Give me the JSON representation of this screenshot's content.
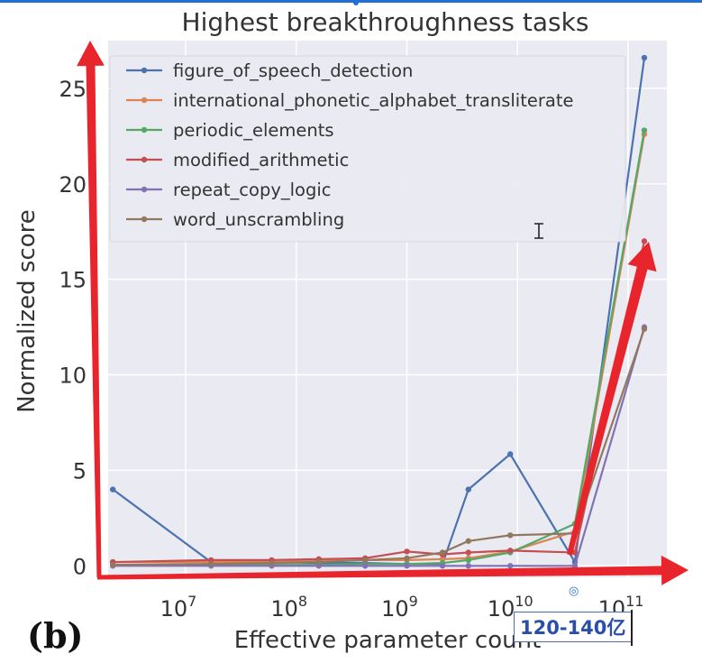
{
  "chart_data": {
    "type": "line",
    "title": "Highest breakthroughness tasks",
    "xlabel": "Effective parameter count",
    "ylabel": "Normalized score",
    "x_scale": "log",
    "x_ticks": [
      {
        "value": 10000000,
        "base": "10",
        "exp": "7"
      },
      {
        "value": 100000000,
        "base": "10",
        "exp": "8"
      },
      {
        "value": 1000000000,
        "base": "10",
        "exp": "9"
      },
      {
        "value": 10000000000,
        "base": "10",
        "exp": "10"
      },
      {
        "value": 100000000000,
        "base": "10",
        "exp": "11"
      }
    ],
    "y_ticks": [
      "0",
      "5",
      "10",
      "15",
      "20",
      "25"
    ],
    "ylim": [
      -0.6,
      27.5
    ],
    "grid": true,
    "legend_position": "upper-left",
    "series": [
      {
        "name": "figure_of_speech_detection",
        "color": "#4c72b0",
        "x": [
          2200000.0,
          17000000.0,
          60000000.0,
          160000000.0,
          420000000.0,
          1000000000.0,
          2100000000.0,
          3600000000.0,
          8600000000.0,
          33000000000.0,
          140000000000.0
        ],
        "y": [
          4.0,
          0.2,
          0.2,
          0.15,
          0.15,
          0.1,
          0.1,
          4.0,
          5.85,
          0.2,
          26.6
        ]
      },
      {
        "name": "international_phonetic_alphabet_transliterate",
        "color": "#dd8452",
        "x": [
          2200000.0,
          17000000.0,
          60000000.0,
          160000000.0,
          420000000.0,
          1000000000.0,
          2100000000.0,
          3600000000.0,
          8600000000.0,
          33000000000.0,
          140000000000.0
        ],
        "y": [
          0.2,
          0.2,
          0.2,
          0.25,
          0.3,
          0.3,
          0.35,
          0.4,
          0.75,
          1.8,
          22.6
        ]
      },
      {
        "name": "periodic_elements",
        "color": "#55a868",
        "x": [
          2200000.0,
          17000000.0,
          60000000.0,
          160000000.0,
          420000000.0,
          1000000000.0,
          2100000000.0,
          3600000000.0,
          8600000000.0,
          33000000000.0,
          140000000000.0
        ],
        "y": [
          0.05,
          0.05,
          0.05,
          0.05,
          0.1,
          0.1,
          0.15,
          0.3,
          0.7,
          2.2,
          22.8
        ]
      },
      {
        "name": "modified_arithmetic",
        "color": "#c44e52",
        "x": [
          2200000.0,
          17000000.0,
          60000000.0,
          160000000.0,
          420000000.0,
          1000000000.0,
          2100000000.0,
          3600000000.0,
          8600000000.0,
          33000000000.0,
          140000000000.0
        ],
        "y": [
          0.2,
          0.3,
          0.3,
          0.35,
          0.4,
          0.75,
          0.6,
          0.7,
          0.8,
          0.7,
          17.0
        ]
      },
      {
        "name": "repeat_copy_logic",
        "color": "#8172b3",
        "x": [
          2200000.0,
          17000000.0,
          60000000.0,
          160000000.0,
          420000000.0,
          1000000000.0,
          2100000000.0,
          3600000000.0,
          8600000000.0,
          33000000000.0,
          140000000000.0
        ],
        "y": [
          0.0,
          0.0,
          0.0,
          0.0,
          0.0,
          0.0,
          0.0,
          0.0,
          0.0,
          0.0,
          12.5
        ]
      },
      {
        "name": "word_unscrambling",
        "color": "#937860",
        "x": [
          2200000.0,
          17000000.0,
          60000000.0,
          160000000.0,
          420000000.0,
          1000000000.0,
          2100000000.0,
          3600000000.0,
          8600000000.0,
          33000000000.0,
          140000000000.0
        ],
        "y": [
          0.05,
          0.1,
          0.15,
          0.2,
          0.3,
          0.4,
          0.7,
          1.3,
          1.6,
          1.7,
          12.4
        ]
      }
    ]
  },
  "figure": {
    "panel_label": "(b)"
  },
  "overlay": {
    "ime_text": "120-140亿",
    "arrow_color": "#e8242c"
  }
}
